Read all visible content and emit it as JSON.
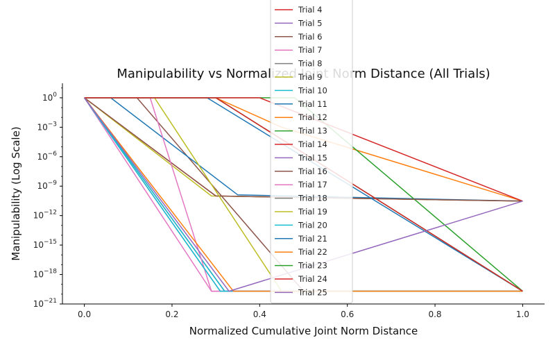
{
  "chart_data": {
    "type": "line",
    "title": "Manipulability vs Normalized Joint Norm Distance (All Trials)",
    "xlabel": "Normalized Cumulative Joint Norm Distance",
    "ylabel": "Manipulability (Log Scale)",
    "x_scale": "linear",
    "y_scale": "log",
    "xlim": [
      -0.05,
      1.05
    ],
    "ylim": [
      1e-21,
      30
    ],
    "x_ticks": [
      0.0,
      0.2,
      0.4,
      0.6,
      0.8,
      1.0
    ],
    "x_tick_labels": [
      "0.0",
      "0.2",
      "0.4",
      "0.6",
      "0.8",
      "1.0"
    ],
    "y_ticks": [
      1.0,
      0.001,
      1e-06,
      1e-09,
      1e-12,
      1e-15,
      1e-18,
      1e-21
    ],
    "y_tick_labels": [
      "10^0",
      "10^-3",
      "10^-6",
      "10^-9",
      "10^-12",
      "10^-15",
      "10^-18",
      "10^-21"
    ],
    "legend_position": "top-center",
    "series": [
      {
        "name": "Trial 4",
        "color": "#d62728",
        "x": [
          0.0,
          0.3,
          1.0
        ],
        "y": [
          1,
          1e-10,
          3e-11
        ]
      },
      {
        "name": "Trial 5",
        "color": "#9467bd",
        "x": [
          0.0,
          0.32,
          1.0
        ],
        "y": [
          1,
          2e-20,
          2e-20
        ]
      },
      {
        "name": "Trial 6",
        "color": "#8c564b",
        "x": [
          0.0,
          0.12,
          0.5,
          1.0
        ],
        "y": [
          1,
          1,
          2e-20,
          2e-20
        ]
      },
      {
        "name": "Trial 7",
        "color": "#e377c2",
        "x": [
          0.0,
          0.29,
          1.0
        ],
        "y": [
          1,
          2e-20,
          2e-20
        ]
      },
      {
        "name": "Trial 8",
        "color": "#7f7f7f",
        "x": [
          0.0,
          0.32,
          1.0
        ],
        "y": [
          1,
          2e-20,
          2e-20
        ]
      },
      {
        "name": "Trial 9",
        "color": "#bcbd22",
        "x": [
          0.0,
          0.29,
          1.0
        ],
        "y": [
          1,
          1e-10,
          3e-11
        ]
      },
      {
        "name": "Trial 10",
        "color": "#17becf",
        "x": [
          0.0,
          0.32,
          1.0
        ],
        "y": [
          1,
          2e-20,
          2e-20
        ]
      },
      {
        "name": "Trial 11",
        "color": "#1f77b4",
        "x": [
          0.0,
          0.06,
          0.35,
          1.0
        ],
        "y": [
          1,
          1,
          1.3e-10,
          3e-11
        ]
      },
      {
        "name": "Trial 12",
        "color": "#ff7f0e",
        "x": [
          0.0,
          0.3,
          0.45,
          1.0
        ],
        "y": [
          1,
          1,
          0.001,
          3e-11
        ]
      },
      {
        "name": "Trial 13",
        "color": "#2ca02c",
        "x": [
          0.0,
          0.3,
          0.48,
          1.0
        ],
        "y": [
          1,
          1,
          1,
          2e-20
        ]
      },
      {
        "name": "Trial 14",
        "color": "#d62728",
        "x": [
          0.0,
          0.3,
          0.4,
          1.0
        ],
        "y": [
          1,
          1,
          1,
          3e-11
        ]
      },
      {
        "name": "Trial 15",
        "color": "#9467bd",
        "x": [
          0.0,
          0.31,
          1.0
        ],
        "y": [
          1,
          2e-20,
          2e-20
        ]
      },
      {
        "name": "Trial 16",
        "color": "#8c564b",
        "x": [
          0.0,
          0.3,
          1.0
        ],
        "y": [
          1,
          1e-10,
          3e-11
        ]
      },
      {
        "name": "Trial 17",
        "color": "#e377c2",
        "x": [
          0.0,
          0.15,
          0.29,
          1.0
        ],
        "y": [
          1,
          1,
          2e-20,
          2e-20
        ]
      },
      {
        "name": "Trial 18",
        "color": "#7f7f7f",
        "x": [
          0.0,
          0.3,
          1.0
        ],
        "y": [
          1,
          1,
          2e-20
        ]
      },
      {
        "name": "Trial 19",
        "color": "#bcbd22",
        "x": [
          0.0,
          0.16,
          0.45,
          1.0
        ],
        "y": [
          1,
          1,
          2e-20,
          2e-20
        ]
      },
      {
        "name": "Trial 20",
        "color": "#17becf",
        "x": [
          0.0,
          0.31,
          1.0
        ],
        "y": [
          1,
          2e-20,
          2e-20
        ]
      },
      {
        "name": "Trial 21",
        "color": "#1f77b4",
        "x": [
          0.0,
          0.28,
          1.0
        ],
        "y": [
          1,
          1,
          2e-20
        ]
      },
      {
        "name": "Trial 22",
        "color": "#ff7f0e",
        "x": [
          0.0,
          0.34,
          1.0
        ],
        "y": [
          1,
          2e-20,
          2e-20
        ]
      },
      {
        "name": "Trial 23",
        "color": "#2ca02c",
        "x": [
          0.0,
          0.3,
          1.0
        ],
        "y": [
          1,
          1,
          2e-20
        ]
      },
      {
        "name": "Trial 24",
        "color": "#d62728",
        "x": [
          0.0,
          0.3,
          1.0
        ],
        "y": [
          1,
          1,
          2e-20
        ]
      },
      {
        "name": "Trial 25",
        "color": "#9467bd",
        "x": [
          0.0,
          0.33,
          1.0
        ],
        "y": [
          1,
          2e-20,
          3e-11
        ]
      }
    ]
  }
}
